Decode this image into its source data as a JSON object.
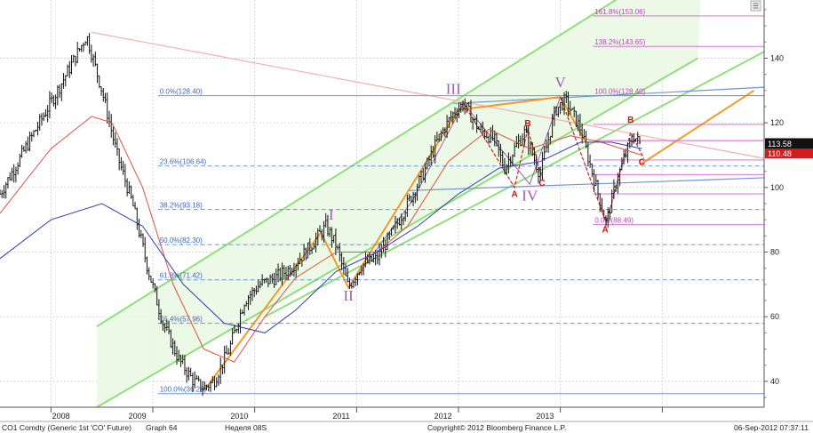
{
  "chart_data": {
    "type": "candlestick",
    "instrument": "CO1 Comdty (Generic 1st 'CO' Future)",
    "graph": "Graph 64",
    "period": "Неделя 08S",
    "copyright": "Copyright© 2012 Bloomberg Finance L.P.",
    "timestamp": "06-Sep-2012 07:37:11",
    "x_labels": [
      "2008",
      "2009",
      "2010",
      "2011",
      "2012",
      "2013"
    ],
    "y_ticks": [
      40,
      60,
      80,
      100,
      120,
      140
    ],
    "ylim": [
      32,
      158
    ],
    "last_price": "113.58",
    "second_price": "110.48",
    "price_path": [
      [
        2007.0,
        98
      ],
      [
        2007.3,
        115
      ],
      [
        2007.6,
        132
      ],
      [
        2007.85,
        147
      ],
      [
        2008.0,
        130
      ],
      [
        2008.15,
        110
      ],
      [
        2008.3,
        95
      ],
      [
        2008.45,
        75
      ],
      [
        2008.6,
        58
      ],
      [
        2008.75,
        47
      ],
      [
        2008.9,
        40
      ],
      [
        2009.0,
        38
      ],
      [
        2009.1,
        40
      ],
      [
        2009.25,
        50
      ],
      [
        2009.4,
        65
      ],
      [
        2009.55,
        70
      ],
      [
        2009.7,
        72
      ],
      [
        2009.85,
        75
      ],
      [
        2010.0,
        80
      ],
      [
        2010.2,
        88
      ],
      [
        2010.3,
        82
      ],
      [
        2010.42,
        69
      ],
      [
        2010.55,
        76
      ],
      [
        2010.7,
        78
      ],
      [
        2010.85,
        86
      ],
      [
        2011.0,
        95
      ],
      [
        2011.15,
        104
      ],
      [
        2011.3,
        115
      ],
      [
        2011.45,
        123
      ],
      [
        2011.55,
        126
      ],
      [
        2011.7,
        118
      ],
      [
        2011.85,
        115
      ],
      [
        2011.95,
        106
      ],
      [
        2012.05,
        112
      ],
      [
        2012.15,
        117
      ],
      [
        2012.3,
        104
      ],
      [
        2012.45,
        124
      ],
      [
        2012.55,
        127
      ],
      [
        2012.7,
        118
      ],
      [
        2012.8,
        106
      ],
      [
        2012.88,
        97
      ],
      [
        2012.95,
        89
      ],
      [
        2013.05,
        102
      ],
      [
        2013.15,
        111
      ],
      [
        2013.22,
        116
      ],
      [
        2013.28,
        113.58
      ]
    ],
    "ma_red": [
      [
        2007.0,
        92
      ],
      [
        2007.5,
        112
      ],
      [
        2007.9,
        122
      ],
      [
        2008.1,
        120
      ],
      [
        2008.4,
        100
      ],
      [
        2008.7,
        70
      ],
      [
        2009.0,
        50
      ],
      [
        2009.3,
        46
      ],
      [
        2009.6,
        60
      ],
      [
        2009.9,
        72
      ],
      [
        2010.3,
        80
      ],
      [
        2010.7,
        80
      ],
      [
        2011.0,
        88
      ],
      [
        2011.4,
        108
      ],
      [
        2011.8,
        118
      ],
      [
        2012.2,
        112
      ],
      [
        2012.6,
        116
      ],
      [
        2012.9,
        114
      ],
      [
        2013.3,
        110
      ]
    ],
    "ma_blue": [
      [
        2007.0,
        78
      ],
      [
        2007.5,
        90
      ],
      [
        2008.0,
        95
      ],
      [
        2008.4,
        88
      ],
      [
        2008.8,
        70
      ],
      [
        2009.2,
        58
      ],
      [
        2009.6,
        55
      ],
      [
        2009.9,
        62
      ],
      [
        2010.3,
        74
      ],
      [
        2010.7,
        80
      ],
      [
        2011.1,
        88
      ],
      [
        2011.5,
        98
      ],
      [
        2011.9,
        106
      ],
      [
        2012.3,
        108
      ],
      [
        2012.7,
        114
      ],
      [
        2013.0,
        114
      ],
      [
        2013.3,
        112
      ]
    ],
    "fib_blue": [
      {
        "label": "0.0%(128.40)",
        "value": 128.4,
        "style": "solid"
      },
      {
        "label": "23.6%(106.64)",
        "value": 106.64,
        "style": "dashed"
      },
      {
        "label": "38.2%(93.18)",
        "value": 93.18,
        "style": "dashed"
      },
      {
        "label": "50.0%(82.30)",
        "value": 82.3,
        "style": "dashed"
      },
      {
        "label": "61.8%(71.42)",
        "value": 71.42,
        "style": "dashed"
      },
      {
        "label": "76.4%(57.96)",
        "value": 57.96,
        "style": "dashed"
      },
      {
        "label": "100.0%(36.20)",
        "value": 36.2,
        "style": "solid"
      }
    ],
    "fib_magenta": [
      {
        "label": "161.8%(153.06)",
        "value": 153.06,
        "show": true
      },
      {
        "label": "138.2%(143.65)",
        "value": 143.65,
        "show": true
      },
      {
        "label": "100.0%(128.40)",
        "value": 128.4,
        "show": true
      },
      {
        "label": "",
        "value": 119.5,
        "show": false
      },
      {
        "label": "",
        "value": 114.5,
        "show": false
      },
      {
        "label": "",
        "value": 108.5,
        "show": false
      },
      {
        "label": "",
        "value": 104.0,
        "show": false
      },
      {
        "label": "",
        "value": 98.0,
        "show": false
      },
      {
        "label": "0.0%(88.49)",
        "value": 88.49,
        "show": true
      }
    ],
    "waves_roman": [
      {
        "text": "I",
        "x": 2010.25,
        "y": 90
      },
      {
        "text": "II",
        "x": 2010.42,
        "y": 65
      },
      {
        "text": "III",
        "x": 2011.45,
        "y": 129
      },
      {
        "text": "IV",
        "x": 2012.2,
        "y": 96
      },
      {
        "text": "V",
        "x": 2012.5,
        "y": 131
      }
    ],
    "waves_letter": [
      {
        "text": "A",
        "x": 2012.05,
        "y": 97
      },
      {
        "text": "B",
        "x": 2012.18,
        "y": 119
      },
      {
        "text": "C",
        "x": 2012.32,
        "y": 100.5
      },
      {
        "text": "A",
        "x": 2012.94,
        "y": 86
      },
      {
        "text": "B",
        "x": 2013.19,
        "y": 120
      },
      {
        "text": "C",
        "x": 2013.3,
        "y": 107
      }
    ]
  }
}
